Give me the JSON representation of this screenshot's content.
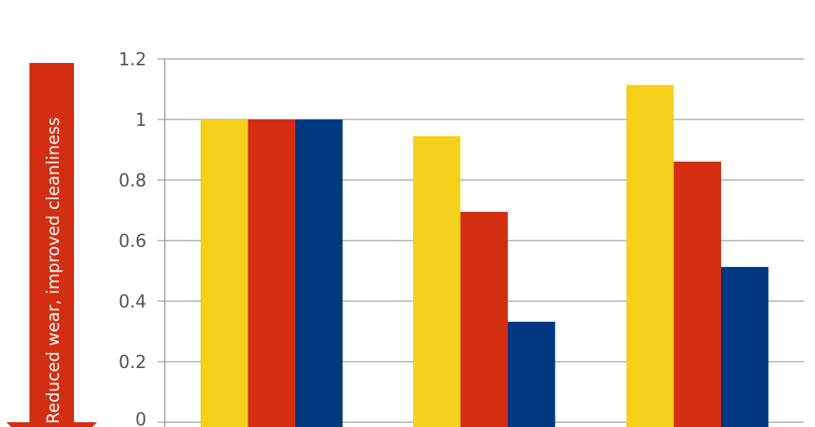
{
  "chart_data": {
    "type": "bar",
    "categories": [
      "",
      "",
      ""
    ],
    "series": [
      {
        "values": [
          1.0,
          0.945,
          1.114
        ],
        "color": "#F5D11C"
      },
      {
        "values": [
          1.0,
          0.695,
          0.861
        ],
        "color": "#D42E12"
      },
      {
        "values": [
          1.0,
          0.332,
          0.513
        ],
        "color": "#003882"
      }
    ],
    "ylim": [
      0,
      1.2
    ],
    "yticks": [
      "0",
      "0.2",
      "0.4",
      "0.6",
      "0.8",
      "1",
      "1.2"
    ],
    "grid": true,
    "annotation": {
      "text": "Reduced wear, improved cleanliness",
      "direction": "down",
      "color": "#D42E12"
    }
  }
}
